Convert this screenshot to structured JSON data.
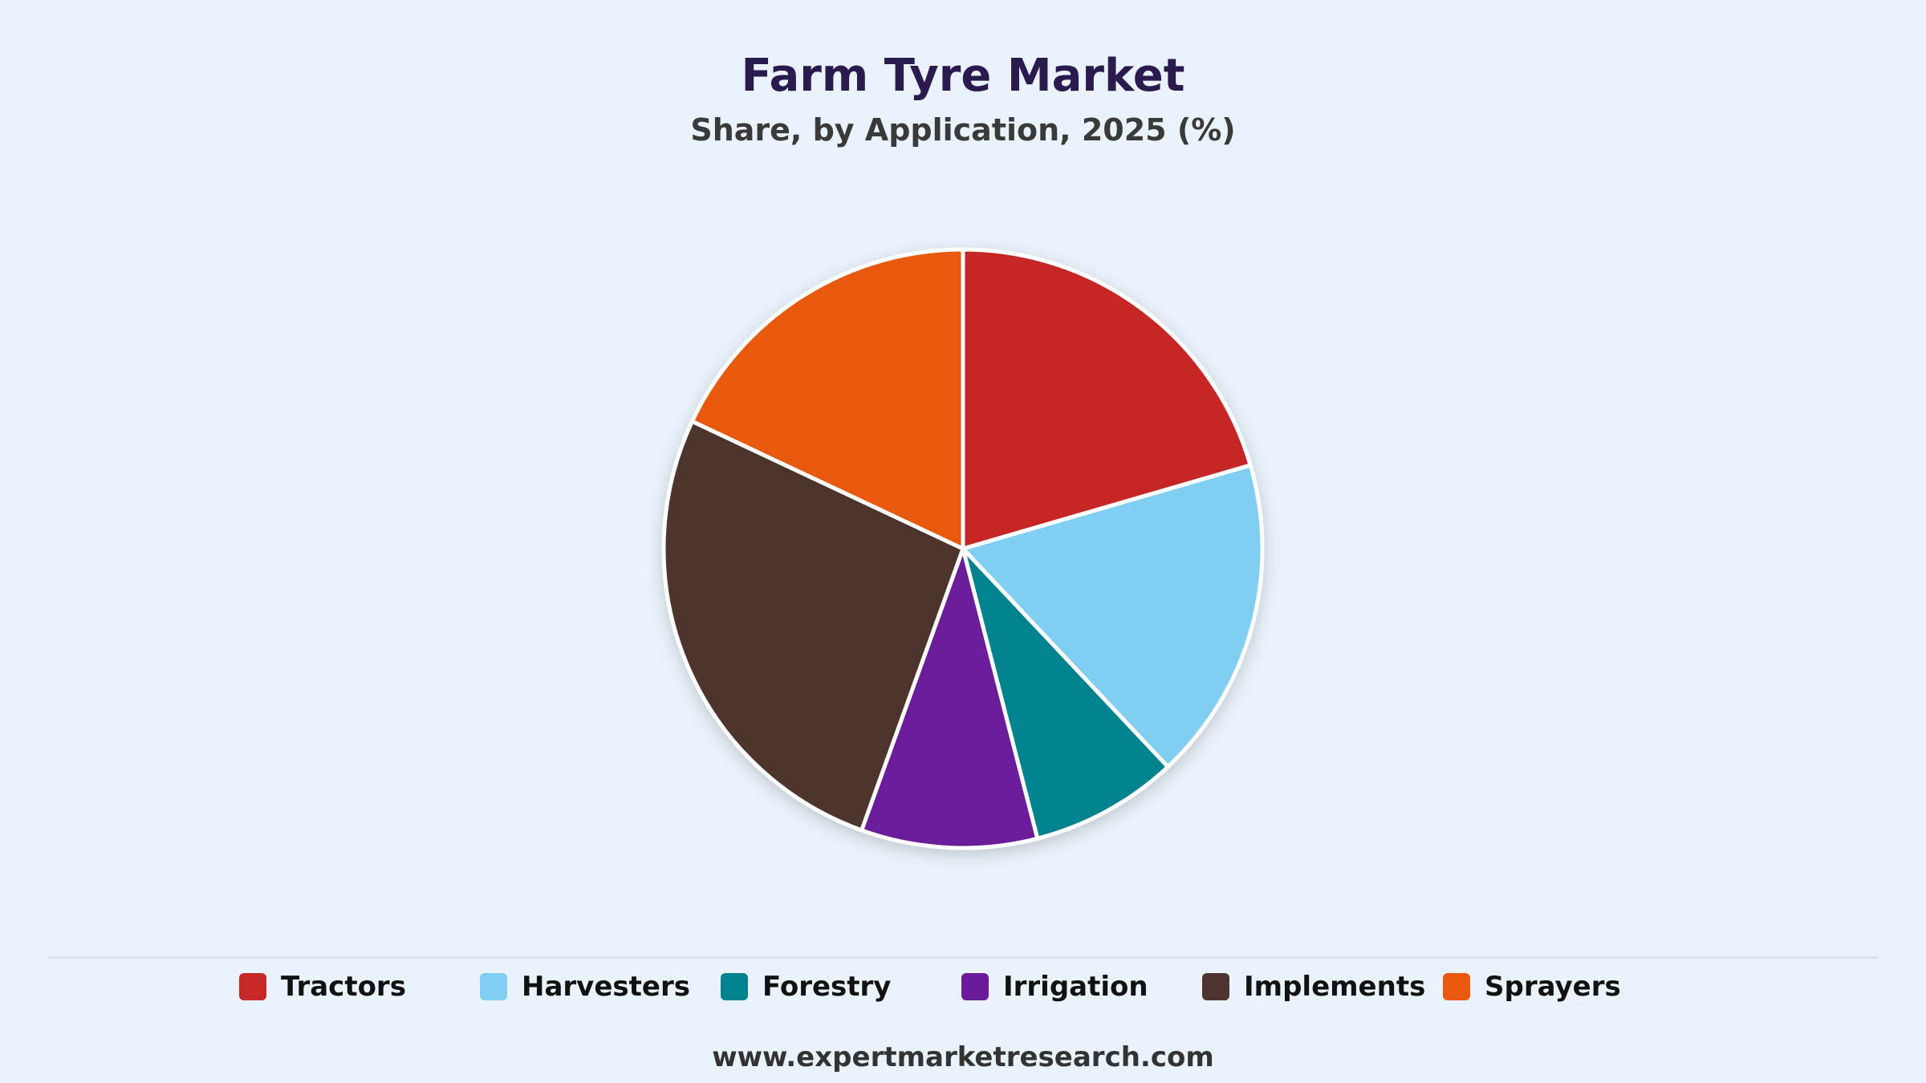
{
  "chart_data": {
    "type": "pie",
    "title": "Farm Tyre Market",
    "subtitle": "Share, by Application, 2025 (%)",
    "categories": [
      "Tractors",
      "Harvesters",
      "Forestry",
      "Irrigation",
      "Implements",
      "Sprayers"
    ],
    "values": [
      20.5,
      17.5,
      8.0,
      9.5,
      26.5,
      18.0
    ],
    "colors": [
      "#c62828",
      "#81cef3",
      "#00838f",
      "#6a1b9a",
      "#4e342e",
      "#e8580f"
    ],
    "start_angle": "12 o'clock",
    "direction": "clockwise",
    "legend": "bottom"
  },
  "footer": {
    "url": "www.expertmarketresearch.com"
  }
}
